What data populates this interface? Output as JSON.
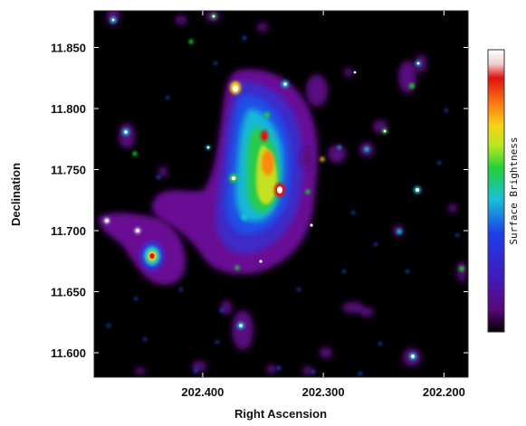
{
  "chart_data": {
    "type": "heatmap",
    "title": "",
    "xlabel": "Right Ascension",
    "ylabel": "Declination",
    "colorbar_label": "Surface Brightness",
    "x_ticks": [
      "202.400",
      "202.300",
      "202.200"
    ],
    "y_ticks": [
      "11.850",
      "11.800",
      "11.750",
      "11.700",
      "11.650",
      "11.600"
    ],
    "x_tick_values": [
      202.4,
      202.3,
      202.2
    ],
    "y_tick_values": [
      11.85,
      11.8,
      11.75,
      11.7,
      11.65,
      11.6
    ],
    "xlim": [
      202.49,
      202.18
    ],
    "ylim": [
      11.58,
      11.88
    ],
    "colormap": [
      "#000000",
      "#6a0a8a",
      "#1d2bd6",
      "#18c8d8",
      "#2fd23a",
      "#f0e020",
      "#ff7a10",
      "#e21010",
      "#ffffff"
    ],
    "background": "#000000",
    "grid": false
  }
}
